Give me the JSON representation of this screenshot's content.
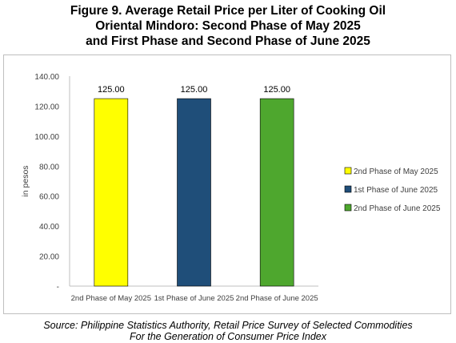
{
  "title_lines": [
    "Figure 9. Average Retail Price per Liter of Cooking Oil",
    "Oriental Mindoro: Second Phase of May 2025",
    "and First Phase and Second Phase of June 2025"
  ],
  "source_lines": [
    "Source: Philippine Statistics Authority, Retail Price Survey of Selected Commodities",
    "For the Generation of Consumer Price Index"
  ],
  "chart_data": {
    "type": "bar",
    "categories": [
      "2nd Phase of May 2025",
      "1st Phase of June 2025",
      "2nd Phase of June 2025"
    ],
    "values": [
      125.0,
      125.0,
      125.0
    ],
    "value_labels": [
      "125.00",
      "125.00",
      "125.00"
    ],
    "colors": [
      "#ffff00",
      "#1f4e79",
      "#4ea72e"
    ],
    "legend": [
      "2nd Phase of May 2025",
      "1st Phase of June 2025",
      "2nd Phase of June 2025"
    ],
    "legend_position": "right",
    "ylabel": "in pesos",
    "ylim": [
      0,
      140
    ],
    "yticks": [
      0,
      20,
      40,
      60,
      80,
      100,
      120,
      140
    ],
    "ytick_labels": [
      "-",
      "20.00",
      "40.00",
      "60.00",
      "80.00",
      "100.00",
      "120.00",
      "140.00"
    ],
    "grid": false
  }
}
